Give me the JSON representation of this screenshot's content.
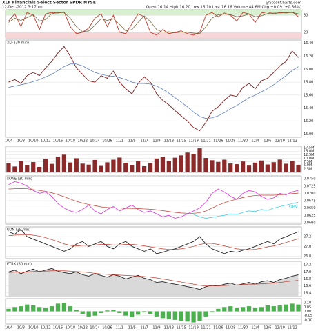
{
  "chart_data": [
    {
      "type": "line",
      "title": "XLF Financials Select Sector SPDR NYSE",
      "subtitle": "12-Dec-2012 3:17pm",
      "source": "@StockCharts.com",
      "quote": "Open 16.14 High 16.20 Low 16.10 Last 16.16 Volume 44.6M Chg +0.09 (+0.56%)",
      "ylim": [
        0,
        100
      ],
      "yticks": [
        20,
        80
      ],
      "zones": true,
      "series": [
        {
          "color": "#c0392b",
          "values": [
            60,
            85,
            40,
            90,
            80,
            30,
            85,
            90,
            88,
            92,
            40,
            15,
            20,
            35,
            70,
            85,
            40,
            80,
            20,
            15,
            50,
            85,
            75,
            20,
            10,
            30,
            15,
            20,
            25,
            15,
            10,
            20,
            80,
            90,
            75,
            88,
            80,
            60,
            90,
            85,
            55,
            88,
            92,
            85,
            90,
            88,
            92,
            75
          ]
        },
        {
          "color": "#6b5a2a",
          "values": [
            55,
            70,
            62,
            72,
            82,
            60,
            65,
            86,
            89,
            90,
            70,
            40,
            22,
            25,
            45,
            68,
            62,
            68,
            48,
            25,
            30,
            55,
            78,
            58,
            30,
            20,
            22,
            18,
            21,
            20,
            17,
            15,
            40,
            70,
            82,
            84,
            82,
            75,
            78,
            84,
            75,
            78,
            86,
            88,
            88,
            89,
            90,
            85
          ]
        }
      ]
    },
    {
      "type": "line",
      "label": "XLF (30 min)",
      "ylim": [
        14.95,
        16.45
      ],
      "yticks": [
        {
          "value": 15.0,
          "label": "15.00"
        },
        {
          "value": 15.2,
          "label": "15.20"
        },
        {
          "value": 15.4,
          "label": "15.40"
        },
        {
          "value": 15.6,
          "label": "15.60"
        },
        {
          "value": 15.8,
          "label": "15.80"
        },
        {
          "value": 16.0,
          "label": "16.00"
        },
        {
          "value": 16.2,
          "label": "16.20"
        },
        {
          "value": 16.4,
          "label": "16.40"
        }
      ],
      "categories": [
        "10/4",
        null,
        "10/8",
        null,
        "10/10",
        null,
        "10/12",
        null,
        "10/16",
        null,
        "10/18",
        null,
        "10/22",
        null,
        "10/24",
        null,
        "10/26",
        null,
        "11/1",
        null,
        "11/5",
        null,
        "11/7",
        null,
        "11/9",
        null,
        "11/13",
        null,
        "11/15",
        null,
        "11/19",
        null,
        "11/21",
        null,
        "11/26",
        null,
        "11/28",
        null,
        "11/30",
        null,
        "12/4",
        null,
        "12/6",
        null,
        "12/10",
        null,
        "12/12",
        null
      ],
      "series": [
        {
          "color": "#7a1c1c",
          "values": [
            15.8,
            15.84,
            15.78,
            15.9,
            15.95,
            15.9,
            16.02,
            16.12,
            16.25,
            16.35,
            16.2,
            16.02,
            15.92,
            15.82,
            15.8,
            15.9,
            15.86,
            15.97,
            15.8,
            15.7,
            15.62,
            15.78,
            15.88,
            15.8,
            15.62,
            15.52,
            15.45,
            15.36,
            15.28,
            15.2,
            15.1,
            15.05,
            15.18,
            15.35,
            15.42,
            15.52,
            15.6,
            15.58,
            15.72,
            15.78,
            15.7,
            15.82,
            15.86,
            15.95,
            16.05,
            16.12,
            16.28,
            16.18
          ]
        },
        {
          "color": "#4a6fb5",
          "values": [
            15.72,
            15.74,
            15.76,
            15.78,
            15.81,
            15.84,
            15.88,
            15.92,
            15.98,
            16.04,
            16.08,
            16.08,
            16.05,
            16.0,
            15.95,
            15.92,
            15.9,
            15.89,
            15.87,
            15.84,
            15.8,
            15.78,
            15.78,
            15.77,
            15.74,
            15.69,
            15.63,
            15.56,
            15.49,
            15.42,
            15.34,
            15.27,
            15.24,
            15.25,
            15.28,
            15.33,
            15.39,
            15.44,
            15.5,
            15.56,
            15.6,
            15.65,
            15.7,
            15.76,
            15.83,
            15.9,
            15.98,
            16.04
          ]
        }
      ]
    },
    {
      "type": "bar",
      "ylim": [
        0,
        18.5
      ],
      "yticks": [
        {
          "value": 2.5,
          "label": "2.5M"
        },
        {
          "value": 5,
          "label": "5.0M"
        },
        {
          "value": 7.5,
          "label": "7.5M"
        },
        {
          "value": 10,
          "label": "10.0M"
        },
        {
          "value": 12.5,
          "label": "12.5M"
        },
        {
          "value": 15,
          "label": "15.0M"
        },
        {
          "value": 17.5,
          "label": "17.5M"
        }
      ],
      "series": [
        {
          "color": "#8b2a2a",
          "values": [
            6.5,
            4.2,
            8,
            5.1,
            7.3,
            3.9,
            9.5,
            6,
            11,
            12.5,
            7,
            10,
            6.2,
            5.5,
            8.8,
            4.6,
            7.1,
            9,
            10.5,
            6.8,
            5.2,
            7.9,
            4.4,
            6.6,
            9.8,
            11.2,
            8.1,
            10.4,
            12,
            14,
            13,
            17,
            10.2,
            8.6,
            7.4,
            9,
            6.3,
            5.8,
            7.7,
            4.8,
            6.9,
            8.4,
            5.6,
            7.2,
            9.1,
            6.1,
            8.3,
            5.4
          ]
        }
      ]
    },
    {
      "type": "line",
      "label": "$ONE (30 min)",
      "annotation": "OBV",
      "ylim": [
        0.0595,
        0.076
      ],
      "yticks": [
        {
          "value": 0.06,
          "label": "0.0600"
        },
        {
          "value": 0.0625,
          "label": "0.0625"
        },
        {
          "value": 0.065,
          "label": "0.0650"
        },
        {
          "value": 0.0675,
          "label": "0.0675"
        },
        {
          "value": 0.07,
          "label": "0.0700"
        },
        {
          "value": 0.0725,
          "label": "0.0725"
        },
        {
          "value": 0.075,
          "label": "0.0750"
        }
      ],
      "series": [
        {
          "color": "#e040e0",
          "values": [
            0.073,
            0.074,
            0.0735,
            0.0725,
            0.071,
            0.07,
            0.0705,
            0.069,
            0.0665,
            0.065,
            0.064,
            0.0635,
            0.0645,
            0.066,
            0.064,
            0.063,
            0.0645,
            0.0655,
            0.064,
            0.065,
            0.066,
            0.0645,
            0.0635,
            0.064,
            0.063,
            0.062,
            0.0625,
            0.0615,
            0.062,
            0.063,
            0.064,
            0.065,
            0.067,
            0.07,
            0.0715,
            0.0705,
            0.069,
            0.068,
            0.07,
            0.071,
            0.0705,
            0.069,
            0.068,
            0.0685,
            0.07,
            0.0695,
            0.0705,
            0.071
          ]
        },
        {
          "color": "#c0392b",
          "values": [
            0.0715,
            0.0716,
            0.0717,
            0.0716,
            0.0713,
            0.071,
            0.0707,
            0.0702,
            0.0696,
            0.0689,
            0.0681,
            0.0673,
            0.0667,
            0.0662,
            0.0658,
            0.0654,
            0.0652,
            0.0651,
            0.065,
            0.0649,
            0.0649,
            0.0648,
            0.0647,
            0.0646,
            0.0644,
            0.0641,
            0.0638,
            0.0635,
            0.0633,
            0.0632,
            0.0632,
            0.0634,
            0.064,
            0.065,
            0.066,
            0.0668,
            0.0675,
            0.068,
            0.0686,
            0.069,
            0.0693,
            0.0694,
            0.0694,
            0.0694,
            0.0695,
            0.0697,
            0.0699,
            0.0701
          ]
        },
        {
          "color": "#2ec8e0",
          "values": [
            null,
            null,
            null,
            null,
            null,
            null,
            null,
            null,
            null,
            null,
            null,
            null,
            null,
            null,
            null,
            null,
            null,
            null,
            null,
            null,
            null,
            null,
            null,
            null,
            null,
            null,
            null,
            null,
            null,
            null,
            0.0628,
            0.062,
            0.0615,
            0.0618,
            0.0622,
            0.0625,
            0.063,
            0.0628,
            0.0635,
            0.064,
            0.0638,
            0.0645,
            0.0642,
            0.065,
            0.0655,
            0.066,
            0.0665,
            0.067
          ]
        }
      ]
    },
    {
      "type": "line",
      "label": "UDN (30 min)",
      "ylim": [
        26.75,
        27.4
      ],
      "yticks": [
        {
          "value": 26.8,
          "label": "26.8"
        },
        {
          "value": 27.0,
          "label": "27.0"
        },
        {
          "value": 27.2,
          "label": "27.2"
        }
      ],
      "series": [
        {
          "color": "#222222",
          "values": [
            27.3,
            27.25,
            27.35,
            27.2,
            27.15,
            27.1,
            27.05,
            27.0,
            26.95,
            26.9,
            26.95,
            27.05,
            27.1,
            27.0,
            27.05,
            27.1,
            27.0,
            26.95,
            27.05,
            27.1,
            27.0,
            26.95,
            26.9,
            26.95,
            26.85,
            26.88,
            26.92,
            26.95,
            27.0,
            27.05,
            27.1,
            27.2,
            27.05,
            26.95,
            26.9,
            26.85,
            26.9,
            26.88,
            26.92,
            26.95,
            27.0,
            27.05,
            27.1,
            27.05,
            27.15,
            27.2,
            27.25,
            27.3
          ]
        },
        {
          "color": "#c0392b",
          "values": [
            27.22,
            27.23,
            27.24,
            27.24,
            27.23,
            27.21,
            27.18,
            27.14,
            27.1,
            27.05,
            27.02,
            27.01,
            27.02,
            27.02,
            27.03,
            27.04,
            27.04,
            27.03,
            27.03,
            27.04,
            27.04,
            27.03,
            27.01,
            26.99,
            26.97,
            26.95,
            26.94,
            26.94,
            26.95,
            26.97,
            27.0,
            27.04,
            27.06,
            27.06,
            27.04,
            27.01,
            26.98,
            26.95,
            26.94,
            26.93,
            26.94,
            26.96,
            26.99,
            27.01,
            27.04,
            27.08,
            27.12,
            27.16
          ]
        }
      ]
    },
    {
      "type": "area",
      "label": "ETRX (30 min)",
      "ylim": [
        16.3,
        17.3
      ],
      "yticks": [
        {
          "value": 16.4,
          "label": "16.4"
        },
        {
          "value": 16.6,
          "label": "16.6"
        },
        {
          "value": 16.8,
          "label": "16.8"
        },
        {
          "value": 17.0,
          "label": "17.0"
        },
        {
          "value": 17.2,
          "label": "17.2"
        }
      ],
      "series": [
        {
          "color": "#222222",
          "values": [
            17.0,
            17.05,
            16.95,
            17.02,
            17.08,
            17.0,
            17.05,
            17.1,
            17.02,
            16.98,
            16.95,
            17.0,
            16.92,
            16.88,
            16.95,
            16.9,
            16.85,
            16.92,
            16.88,
            16.8,
            16.85,
            16.9,
            16.82,
            16.78,
            16.7,
            16.72,
            16.68,
            16.65,
            16.62,
            16.58,
            16.55,
            16.5,
            16.58,
            16.62,
            16.6,
            16.65,
            16.68,
            16.62,
            16.66,
            16.7,
            16.65,
            16.72,
            16.75,
            16.7,
            16.78,
            16.82,
            16.88,
            16.92
          ]
        },
        {
          "color": "#c0392b",
          "values": [
            16.98,
            16.99,
            17.0,
            17.0,
            17.01,
            17.02,
            17.02,
            17.03,
            17.03,
            17.03,
            17.02,
            17.01,
            17.0,
            16.98,
            16.96,
            16.94,
            16.93,
            16.92,
            16.91,
            16.9,
            16.89,
            16.88,
            16.87,
            16.85,
            16.83,
            16.8,
            16.77,
            16.74,
            16.71,
            16.68,
            16.65,
            16.62,
            16.6,
            16.6,
            16.6,
            16.61,
            16.62,
            16.63,
            16.64,
            16.65,
            16.65,
            16.66,
            16.67,
            16.68,
            16.7,
            16.72,
            16.74,
            16.76
          ]
        }
      ]
    },
    {
      "type": "bar",
      "ylim": [
        -0.15,
        0.15
      ],
      "yticks": [
        {
          "value": -0.1,
          "label": "-0.10"
        },
        {
          "value": -0.05,
          "label": "-0.05"
        },
        {
          "value": 0,
          "label": "0.00"
        },
        {
          "value": 0.05,
          "label": "0.05"
        },
        {
          "value": 0.1,
          "label": "0.10"
        }
      ],
      "categories": [
        "10/4",
        null,
        "10/8",
        null,
        "10/10",
        null,
        "10/12",
        null,
        "10/16",
        null,
        "10/18",
        null,
        "10/22",
        null,
        "10/24",
        null,
        "10/26",
        null,
        "11/1",
        null,
        "11/5",
        null,
        "11/7",
        null,
        "11/9",
        null,
        "11/13",
        null,
        "11/15",
        null,
        "11/19",
        null,
        "11/21",
        null,
        "11/26",
        null,
        "11/28",
        null,
        "11/30",
        null,
        "12/4",
        null,
        "12/6",
        null,
        "12/10",
        null,
        "12/12",
        null
      ],
      "series": [
        {
          "color": "#4caf50",
          "values": [
            0.03,
            0.05,
            0.06,
            0.08,
            0.07,
            0.05,
            0.04,
            0.06,
            0.09,
            0.1,
            0.06,
            0.02,
            -0.03,
            -0.06,
            -0.05,
            -0.02,
            0.01,
            0.02,
            -0.02,
            -0.05,
            -0.07,
            -0.04,
            -0.01,
            -0.03,
            -0.06,
            -0.08,
            -0.09,
            -0.1,
            -0.11,
            -0.12,
            -0.13,
            -0.11,
            -0.06,
            -0.01,
            0.03,
            0.05,
            0.06,
            0.04,
            0.05,
            0.06,
            0.04,
            0.05,
            0.07,
            0.06,
            0.07,
            0.08,
            0.09,
            0.08
          ]
        }
      ]
    }
  ]
}
